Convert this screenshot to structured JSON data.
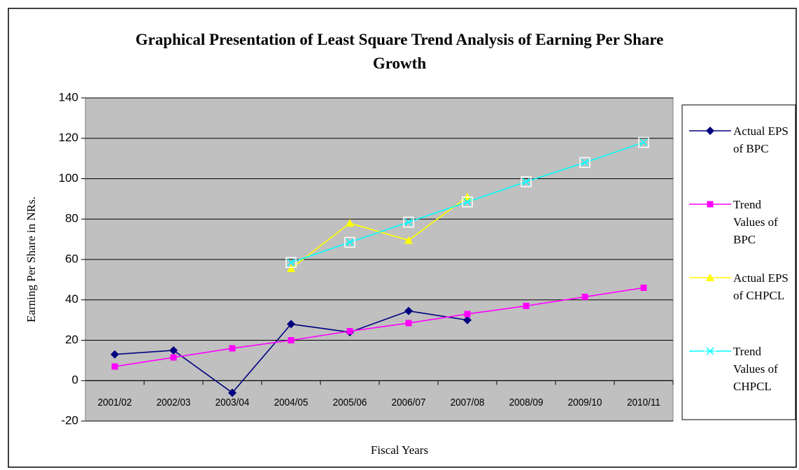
{
  "chart_data": {
    "type": "line",
    "title": "Graphical Presentation of Least Square Trend Analysis of Earning Per Share Growth",
    "x_label": "Fiscal Years",
    "y_label": "Earning Per Share in NRs.",
    "categories": [
      "2001/02",
      "2002/03",
      "2003/04",
      "2004/05",
      "2005/06",
      "2006/07",
      "2007/08",
      "2008/09",
      "2009/10",
      "2010/11"
    ],
    "series": [
      {
        "name": "Actual EPS of BPC",
        "color": "#000080",
        "marker": "diamond",
        "values": [
          13,
          15,
          -6,
          28,
          24,
          34.5,
          30,
          null,
          null,
          null
        ]
      },
      {
        "name": "Trend Values of BPC",
        "color": "#ff00ff",
        "marker": "square",
        "values": [
          7,
          11.5,
          16,
          20,
          24.5,
          28.5,
          33,
          37,
          41.5,
          46
        ]
      },
      {
        "name": "Actual EPS of CHPCL",
        "color": "#ffff00",
        "marker": "triangle",
        "values": [
          null,
          null,
          null,
          55.5,
          78,
          69.5,
          91,
          null,
          null,
          null
        ]
      },
      {
        "name": "Trend Values of CHPCL",
        "color": "#00ffff",
        "marker": "x",
        "values": [
          null,
          null,
          null,
          58.5,
          68.5,
          78.5,
          88.5,
          98.5,
          108,
          118
        ]
      }
    ],
    "ylim": [
      -20,
      140
    ],
    "yticks": [
      -20,
      0,
      20,
      40,
      60,
      80,
      100,
      120,
      140
    ],
    "grid": true
  }
}
